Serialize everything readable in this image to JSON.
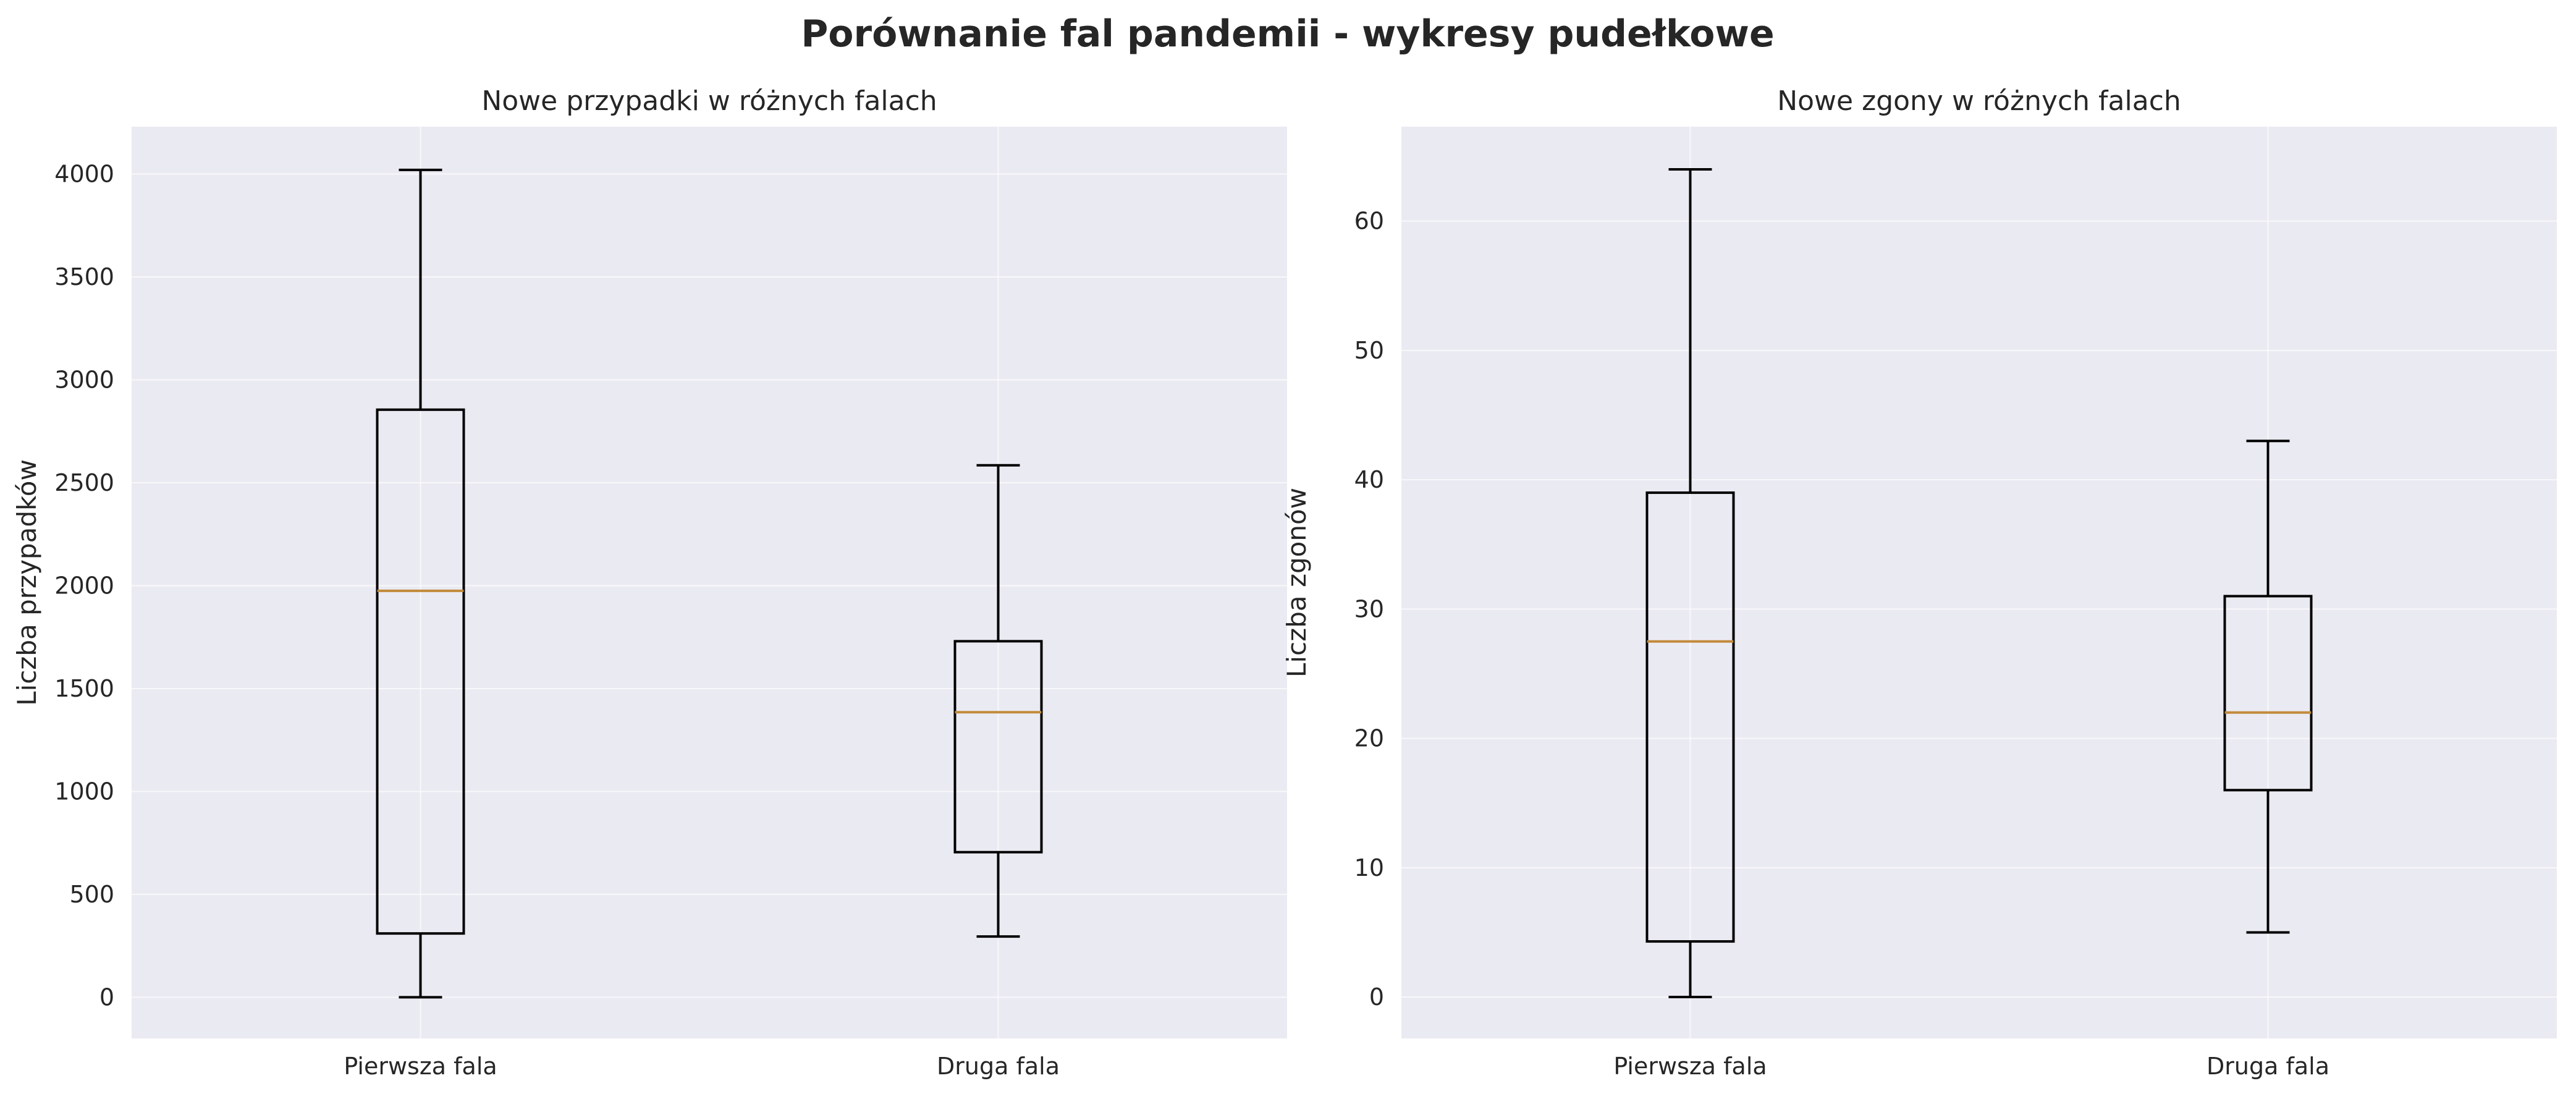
{
  "figure": {
    "title": "Porównanie fal pandemii - wykresy pudełkowe"
  },
  "colors": {
    "background": "#eaeaf2",
    "box": "#000000",
    "median": "#c28b3b",
    "grid": "#ffffff"
  },
  "chart_data": [
    {
      "type": "box",
      "title": "Nowe przypadki w różnych falach",
      "xlabel": "",
      "ylabel": "Liczba przypadków",
      "ylim": [
        -200,
        4230
      ],
      "yticks": [
        0,
        500,
        1000,
        1500,
        2000,
        2500,
        3000,
        3500,
        4000
      ],
      "grid": true,
      "categories": [
        "Pierwsza fala",
        "Druga fala"
      ],
      "boxes": [
        {
          "label": "Pierwsza fala",
          "whisker_low": 0,
          "q1": 310,
          "median": 1975,
          "q3": 2855,
          "whisker_high": 4020
        },
        {
          "label": "Druga fala",
          "whisker_low": 295,
          "q1": 705,
          "median": 1385,
          "q3": 1730,
          "whisker_high": 2585
        }
      ]
    },
    {
      "type": "box",
      "title": "Nowe zgony w różnych falach",
      "xlabel": "",
      "ylabel": "Liczba zgonów",
      "ylim": [
        -3.2,
        67.3
      ],
      "yticks": [
        0,
        10,
        20,
        30,
        40,
        50,
        60
      ],
      "grid": true,
      "categories": [
        "Pierwsza fala",
        "Druga fala"
      ],
      "boxes": [
        {
          "label": "Pierwsza fala",
          "whisker_low": 0,
          "q1": 4.3,
          "median": 27.5,
          "q3": 39,
          "whisker_high": 64
        },
        {
          "label": "Druga fala",
          "whisker_low": 5,
          "q1": 16,
          "median": 22,
          "q3": 31,
          "whisker_high": 43
        }
      ]
    }
  ]
}
